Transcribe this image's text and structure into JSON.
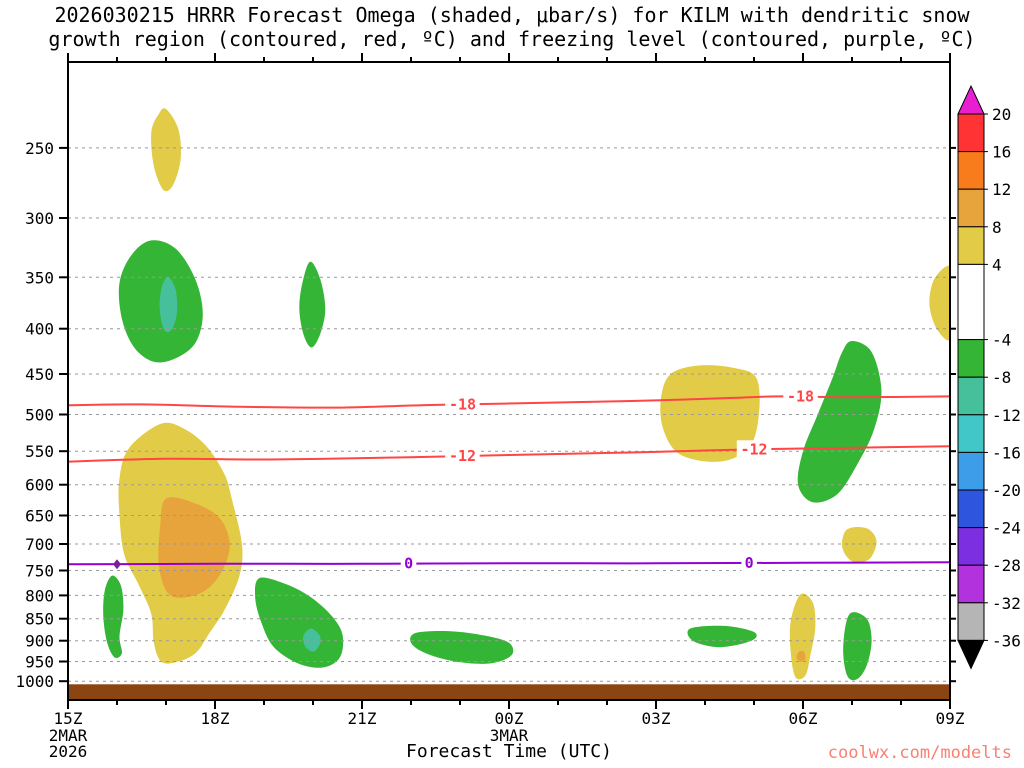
{
  "title": {
    "line1": "2026030215 HRRR Forecast Omega (shaded, μbar/s) for KILM with dendritic snow",
    "line2": "growth region (contoured, red, ºC) and freezing level (contoured, purple, ºC)"
  },
  "footer": {
    "xlabel": "Forecast Time (UTC)",
    "watermark": "coolwx.com/modelts"
  },
  "chart_data": {
    "type": "contour-cross-section",
    "station": "KILM",
    "model_run": "2026030215",
    "shaded_variable": "Omega (μbar/s)",
    "x_axis": {
      "label": "Forecast Time (UTC)",
      "tick_labels": [
        "15Z",
        "18Z",
        "21Z",
        "00Z",
        "03Z",
        "06Z",
        "09Z"
      ],
      "tick_hours": [
        0,
        3,
        6,
        9,
        12,
        15,
        18
      ],
      "hour_range": [
        0,
        18
      ],
      "minor_tick_every": 1,
      "date_labels": [
        {
          "hour": 0,
          "lines": [
            "2MAR",
            "2026"
          ]
        },
        {
          "hour": 9,
          "lines": [
            "3MAR"
          ]
        }
      ]
    },
    "y_axis": {
      "unit": "hPa",
      "scale": "log",
      "tick_pressures": [
        250,
        300,
        350,
        400,
        450,
        500,
        550,
        600,
        650,
        700,
        750,
        800,
        850,
        900,
        950,
        1000
      ],
      "top_pressure": 200,
      "bottom_pressure": 1050
    },
    "grid": {
      "horizontal_dashed": true,
      "color": "#999999"
    },
    "colorbar": {
      "unit": "μbar/s",
      "ticks": [
        {
          "v": 20,
          "label": "20"
        },
        {
          "v": 16,
          "label": "16"
        },
        {
          "v": 12,
          "label": "12"
        },
        {
          "v": 8,
          "label": "8"
        },
        {
          "v": 4,
          "label": "4"
        },
        {
          "v": -4,
          "label": "-4"
        },
        {
          "v": -8,
          "label": "-8"
        },
        {
          "v": -12,
          "label": "-12"
        },
        {
          "v": -16,
          "label": "-16"
        },
        {
          "v": -20,
          "label": "-20"
        },
        {
          "v": -24,
          "label": "-24"
        },
        {
          "v": -28,
          "label": "-28"
        },
        {
          "v": -32,
          "label": "-32"
        },
        {
          "v": -36,
          "label": "-36"
        }
      ],
      "segments": [
        {
          "type": "arrow-top",
          "color": "#e81fd0"
        },
        {
          "lo": 16,
          "hi": 20,
          "color": "#ff3333"
        },
        {
          "lo": 12,
          "hi": 16,
          "color": "#f87b1c"
        },
        {
          "lo": 8,
          "hi": 12,
          "color": "#e8a43c"
        },
        {
          "lo": 4,
          "hi": 8,
          "color": "#e2cb46"
        },
        {
          "lo": -4,
          "hi": 4,
          "color": "#ffffff"
        },
        {
          "lo": -8,
          "hi": -4,
          "color": "#35b535"
        },
        {
          "lo": -12,
          "hi": -8,
          "color": "#46c09b"
        },
        {
          "lo": -16,
          "hi": -12,
          "color": "#41c7c7"
        },
        {
          "lo": -20,
          "hi": -16,
          "color": "#3e9de8"
        },
        {
          "lo": -24,
          "hi": -20,
          "color": "#2e55dd"
        },
        {
          "lo": -28,
          "hi": -24,
          "color": "#7c2fe0"
        },
        {
          "lo": -32,
          "hi": -28,
          "color": "#b233dd"
        },
        {
          "lo": -36,
          "hi": -32,
          "color": "#b5b5b5"
        },
        {
          "type": "arrow-bottom",
          "color": "#000000"
        }
      ]
    },
    "shaded_regions": [
      {
        "name": "upper-left-yellow",
        "omega_range": [
          4,
          8
        ],
        "color": "#e2cb46",
        "points": [
          [
            2.0,
            226
          ],
          [
            2.25,
            238
          ],
          [
            2.3,
            257
          ],
          [
            2.15,
            275
          ],
          [
            1.95,
            279
          ],
          [
            1.75,
            262
          ],
          [
            1.7,
            240
          ],
          [
            1.85,
            229
          ]
        ]
      },
      {
        "name": "midlevel-green-17z",
        "omega_range": [
          -8,
          -4
        ],
        "color": "#35b535",
        "points": [
          [
            1.7,
            318
          ],
          [
            2.2,
            325
          ],
          [
            2.6,
            352
          ],
          [
            2.75,
            385
          ],
          [
            2.6,
            415
          ],
          [
            2.2,
            432
          ],
          [
            1.75,
            436
          ],
          [
            1.35,
            420
          ],
          [
            1.1,
            390
          ],
          [
            1.05,
            355
          ],
          [
            1.3,
            330
          ]
        ]
      },
      {
        "name": "midlevel-teal-core-17z",
        "omega_range": [
          -12,
          -8
        ],
        "color": "#46c09b",
        "points": [
          [
            2.05,
            350
          ],
          [
            2.2,
            362
          ],
          [
            2.22,
            385
          ],
          [
            2.1,
            402
          ],
          [
            1.95,
            400
          ],
          [
            1.87,
            378
          ],
          [
            1.92,
            358
          ]
        ]
      },
      {
        "name": "midlevel-green-20z",
        "omega_range": [
          -8,
          -4
        ],
        "color": "#35b535",
        "points": [
          [
            4.95,
            336
          ],
          [
            5.15,
            352
          ],
          [
            5.25,
            380
          ],
          [
            5.15,
            405
          ],
          [
            4.97,
            420
          ],
          [
            4.8,
            405
          ],
          [
            4.72,
            378
          ],
          [
            4.8,
            352
          ]
        ]
      },
      {
        "name": "yellow-column-17z-19z",
        "omega_range": [
          4,
          8
        ],
        "color": "#e2cb46",
        "points": [
          [
            1.9,
            512
          ],
          [
            2.4,
            520
          ],
          [
            2.85,
            545
          ],
          [
            3.2,
            585
          ],
          [
            3.35,
            625
          ],
          [
            3.55,
            700
          ],
          [
            3.5,
            760
          ],
          [
            3.2,
            830
          ],
          [
            2.9,
            880
          ],
          [
            2.6,
            930
          ],
          [
            2.2,
            952
          ],
          [
            1.9,
            950
          ],
          [
            1.75,
            905
          ],
          [
            1.7,
            840
          ],
          [
            1.45,
            780
          ],
          [
            1.15,
            720
          ],
          [
            1.05,
            650
          ],
          [
            1.05,
            590
          ],
          [
            1.25,
            545
          ]
        ]
      },
      {
        "name": "orange-core-17z-19z",
        "omega_range": [
          8,
          12
        ],
        "color": "#e8a43c",
        "points": [
          [
            2.0,
            622
          ],
          [
            2.6,
            630
          ],
          [
            3.1,
            655
          ],
          [
            3.3,
            700
          ],
          [
            3.15,
            750
          ],
          [
            2.8,
            790
          ],
          [
            2.3,
            805
          ],
          [
            2.0,
            790
          ],
          [
            1.85,
            735
          ],
          [
            1.88,
            670
          ]
        ]
      },
      {
        "name": "lowlevel-green-16z",
        "omega_range": [
          -8,
          -4
        ],
        "color": "#35b535",
        "points": [
          [
            0.9,
            760
          ],
          [
            1.08,
            780
          ],
          [
            1.13,
            830
          ],
          [
            1.05,
            890
          ],
          [
            1.1,
            930
          ],
          [
            0.95,
            940
          ],
          [
            0.8,
            905
          ],
          [
            0.72,
            845
          ],
          [
            0.75,
            790
          ]
        ]
      },
      {
        "name": "lowlevel-green-20z",
        "omega_range": [
          -8,
          -4
        ],
        "color": "#35b535",
        "points": [
          [
            3.9,
            765
          ],
          [
            4.4,
            775
          ],
          [
            4.9,
            800
          ],
          [
            5.35,
            840
          ],
          [
            5.6,
            885
          ],
          [
            5.55,
            940
          ],
          [
            5.2,
            965
          ],
          [
            4.7,
            955
          ],
          [
            4.2,
            915
          ],
          [
            3.95,
            860
          ],
          [
            3.82,
            805
          ]
        ]
      },
      {
        "name": "lowlevel-teal-core-20z",
        "omega_range": [
          -12,
          -8
        ],
        "color": "#46c09b",
        "points": [
          [
            4.95,
            872
          ],
          [
            5.12,
            885
          ],
          [
            5.15,
            905
          ],
          [
            5.02,
            926
          ],
          [
            4.85,
            915
          ],
          [
            4.8,
            890
          ]
        ]
      },
      {
        "name": "lowlevel-green-23z",
        "omega_range": [
          -8,
          -4
        ],
        "color": "#35b535",
        "points": [
          [
            7.1,
            882
          ],
          [
            7.8,
            878
          ],
          [
            8.5,
            888
          ],
          [
            9.0,
            905
          ],
          [
            9.05,
            935
          ],
          [
            8.6,
            955
          ],
          [
            7.9,
            950
          ],
          [
            7.3,
            930
          ],
          [
            7.0,
            905
          ]
        ]
      },
      {
        "name": "lowlevel-green-03z",
        "omega_range": [
          -8,
          -4
        ],
        "color": "#35b535",
        "points": [
          [
            12.7,
            872
          ],
          [
            13.4,
            866
          ],
          [
            14.0,
            880
          ],
          [
            13.95,
            900
          ],
          [
            13.3,
            915
          ],
          [
            12.75,
            900
          ]
        ]
      },
      {
        "name": "midlevel-yellow-04z",
        "omega_range": [
          4,
          8
        ],
        "color": "#e2cb46",
        "points": [
          [
            12.1,
            480
          ],
          [
            12.3,
            450
          ],
          [
            12.9,
            440
          ],
          [
            13.6,
            443
          ],
          [
            14.05,
            455
          ],
          [
            14.1,
            500
          ],
          [
            13.9,
            545
          ],
          [
            13.3,
            565
          ],
          [
            12.5,
            555
          ],
          [
            12.15,
            520
          ]
        ]
      },
      {
        "name": "midlevel-green-06z",
        "omega_range": [
          -8,
          -4
        ],
        "color": "#35b535",
        "points": [
          [
            16.0,
            413
          ],
          [
            16.4,
            425
          ],
          [
            16.6,
            470
          ],
          [
            16.45,
            520
          ],
          [
            16.1,
            570
          ],
          [
            15.7,
            615
          ],
          [
            15.2,
            628
          ],
          [
            14.9,
            600
          ],
          [
            15.0,
            550
          ],
          [
            15.3,
            500
          ],
          [
            15.6,
            455
          ],
          [
            15.8,
            425
          ]
        ]
      },
      {
        "name": "yellow-700hpa-07z",
        "omega_range": [
          4,
          8
        ],
        "color": "#e2cb46",
        "points": [
          [
            15.9,
            674
          ],
          [
            16.3,
            672
          ],
          [
            16.5,
            695
          ],
          [
            16.35,
            728
          ],
          [
            16.0,
            732
          ],
          [
            15.8,
            705
          ]
        ]
      },
      {
        "name": "lowlevel-yellow-06z",
        "omega_range": [
          4,
          8
        ],
        "color": "#e2cb46",
        "points": [
          [
            14.95,
            798
          ],
          [
            15.2,
            815
          ],
          [
            15.25,
            870
          ],
          [
            15.15,
            935
          ],
          [
            15.05,
            985
          ],
          [
            14.85,
            990
          ],
          [
            14.75,
            930
          ],
          [
            14.75,
            855
          ]
        ]
      },
      {
        "name": "orange-dot-06z",
        "omega_range": [
          8,
          12
        ],
        "color": "#e8a43c",
        "points": [
          [
            14.93,
            925
          ],
          [
            15.03,
            928
          ],
          [
            15.04,
            945
          ],
          [
            14.93,
            950
          ],
          [
            14.87,
            938
          ]
        ]
      },
      {
        "name": "lowlevel-green-07z",
        "omega_range": [
          -8,
          -4
        ],
        "color": "#35b535",
        "points": [
          [
            15.95,
            840
          ],
          [
            16.3,
            850
          ],
          [
            16.4,
            900
          ],
          [
            16.3,
            960
          ],
          [
            16.1,
            995
          ],
          [
            15.9,
            985
          ],
          [
            15.82,
            915
          ]
        ]
      },
      {
        "name": "right-edge-yellow-09z",
        "omega_range": [
          4,
          8
        ],
        "color": "#e2cb46",
        "points": [
          [
            17.7,
            350
          ],
          [
            18.05,
            343
          ],
          [
            18.05,
            408
          ],
          [
            17.75,
            402
          ],
          [
            17.58,
            375
          ]
        ]
      }
    ],
    "contours": [
      {
        "name": "dgz-minus18",
        "value": -18,
        "label": "-18",
        "color": "#ff4545",
        "points": [
          [
            0,
            488
          ],
          [
            1.5,
            487
          ],
          [
            3.5,
            490
          ],
          [
            5.5,
            491
          ],
          [
            7.2,
            488
          ],
          [
            8.9,
            486
          ],
          [
            10.5,
            484
          ],
          [
            12,
            482
          ],
          [
            13.5,
            479
          ],
          [
            14.5,
            477
          ],
          [
            16,
            478
          ],
          [
            18,
            477
          ]
        ],
        "label_hours": [
          8.05,
          14.95
        ]
      },
      {
        "name": "dgz-minus12",
        "value": -12,
        "label": "-12",
        "color": "#ff4545",
        "points": [
          [
            0,
            565
          ],
          [
            2,
            561
          ],
          [
            4,
            562
          ],
          [
            6,
            560
          ],
          [
            8,
            557
          ],
          [
            10,
            554
          ],
          [
            12,
            551
          ],
          [
            13,
            549
          ],
          [
            14.2,
            547
          ],
          [
            16,
            545
          ],
          [
            18,
            543
          ]
        ],
        "label_hours": [
          8.05,
          14.0
        ]
      },
      {
        "name": "freezing-level",
        "value": 0,
        "label": "0",
        "color": "#9400d3",
        "points": [
          [
            0,
            738
          ],
          [
            3,
            737
          ],
          [
            6,
            737
          ],
          [
            9,
            736
          ],
          [
            12,
            736
          ],
          [
            15,
            735
          ],
          [
            18,
            734
          ]
        ],
        "label_hours": [
          6.95,
          13.9
        ]
      }
    ],
    "surface": {
      "color": "#8b4513",
      "top_pressure": 1008
    },
    "markers": [
      {
        "hour": 1.0,
        "pressure": 738,
        "color": "#7a1fa0"
      }
    ]
  }
}
